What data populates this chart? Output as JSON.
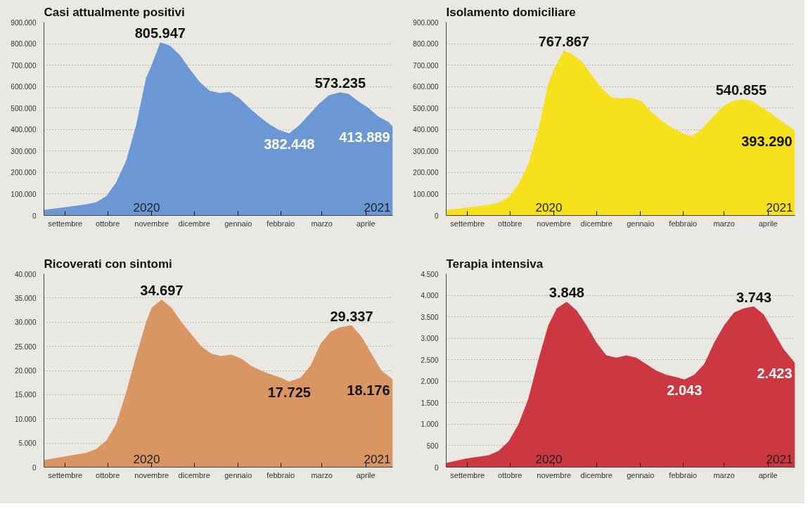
{
  "chart_data": [
    {
      "type": "area",
      "title": "Casi attualmente positivi",
      "color": "#6b98d4",
      "grid": "y",
      "tick_labels": true,
      "x": [
        "2020-09-01",
        "2020-09-15",
        "2020-10-01",
        "2020-10-08",
        "2020-10-15",
        "2020-10-22",
        "2020-10-29",
        "2020-11-05",
        "2020-11-12",
        "2020-11-16",
        "2020-11-22",
        "2020-11-29",
        "2020-12-06",
        "2020-12-13",
        "2020-12-20",
        "2020-12-27",
        "2021-01-03",
        "2021-01-10",
        "2021-01-17",
        "2021-01-24",
        "2021-01-31",
        "2021-02-07",
        "2021-02-14",
        "2021-02-21",
        "2021-02-28",
        "2021-03-07",
        "2021-03-14",
        "2021-03-21",
        "2021-03-29",
        "2021-04-04",
        "2021-04-11",
        "2021-04-18",
        "2021-04-25",
        "2021-05-02",
        "2021-05-05"
      ],
      "values": [
        26000,
        38000,
        52000,
        62000,
        90000,
        155000,
        255000,
        420000,
        640000,
        700000,
        805947,
        790000,
        745000,
        680000,
        620000,
        580000,
        570000,
        575000,
        545000,
        500000,
        460000,
        425000,
        398000,
        382448,
        420000,
        470000,
        520000,
        560000,
        573235,
        565000,
        530000,
        500000,
        460000,
        435000,
        413889
      ],
      "xlim": [
        "2020-09-01",
        "2021-05-05"
      ],
      "xticks": [
        {
          "value": "2020-09-16",
          "label": "settembre"
        },
        {
          "value": "2020-10-16",
          "label": "ottobre"
        },
        {
          "value": "2020-11-16",
          "label": "novembre"
        },
        {
          "value": "2020-12-16",
          "label": "dicembre"
        },
        {
          "value": "2021-01-16",
          "label": "gennaio"
        },
        {
          "value": "2021-02-15",
          "label": "febbraio"
        },
        {
          "value": "2021-03-16",
          "label": "marzo"
        },
        {
          "value": "2021-04-16",
          "label": "aprile"
        }
      ],
      "ylim": [
        0,
        900000
      ],
      "yticks": [
        0,
        {
          "value": 100000,
          "label": "100.000"
        },
        {
          "value": 200000,
          "label": "200.000"
        },
        {
          "value": 300000,
          "label": "300.000"
        },
        {
          "value": 400000,
          "label": "400.000"
        },
        {
          "value": 500000,
          "label": "500.000"
        },
        {
          "value": 600000,
          "label": "600.000"
        },
        {
          "value": 700000,
          "label": "700.000"
        },
        {
          "value": 800000,
          "label": "800.000"
        },
        {
          "value": 900000,
          "label": "900.000"
        }
      ],
      "annotations": [
        {
          "text": "805.947",
          "x": "2020-11-22",
          "y": 805947
        },
        {
          "text": "382.448",
          "x": "2021-02-21",
          "y": 382448
        },
        {
          "text": "573.235",
          "x": "2021-03-29",
          "y": 573235
        },
        {
          "text": "413.889",
          "x": "2021-05-05",
          "y": 413889
        },
        "2020",
        "2021"
      ]
    },
    {
      "type": "area",
      "title": "Isolamento domiciliare",
      "color": "#f7e01c",
      "grid": "y",
      "x": [
        "2020-09-01",
        "2020-09-15",
        "2020-10-01",
        "2020-10-08",
        "2020-10-15",
        "2020-10-22",
        "2020-10-29",
        "2020-11-05",
        "2020-11-12",
        "2020-11-16",
        "2020-11-23",
        "2020-11-29",
        "2020-12-06",
        "2020-12-13",
        "2020-12-20",
        "2020-12-27",
        "2021-01-03",
        "2021-01-10",
        "2021-01-17",
        "2021-01-24",
        "2021-01-31",
        "2021-02-07",
        "2021-02-14",
        "2021-02-21",
        "2021-02-28",
        "2021-03-07",
        "2021-03-14",
        "2021-03-21",
        "2021-03-28",
        "2021-04-04",
        "2021-04-11",
        "2021-04-18",
        "2021-04-25",
        "2021-05-02",
        "2021-05-05"
      ],
      "values": [
        25000,
        36000,
        50000,
        60000,
        85000,
        145000,
        240000,
        400000,
        610000,
        680000,
        767867,
        750000,
        715000,
        650000,
        590000,
        548000,
        545000,
        548000,
        530000,
        480000,
        440000,
        410000,
        385000,
        368000,
        400000,
        450000,
        500000,
        530000,
        540855,
        535000,
        505000,
        475000,
        440000,
        410000,
        393290
      ],
      "xlim": [
        "2020-09-01",
        "2021-05-05"
      ],
      "xticks": [
        {
          "value": "2020-09-16",
          "label": "settembre"
        },
        {
          "value": "2020-10-16",
          "label": "ottobre"
        },
        {
          "value": "2020-11-16",
          "label": "novembre"
        },
        {
          "value": "2020-12-16",
          "label": "dicembre"
        },
        {
          "value": "2021-01-16",
          "label": "gennaio"
        },
        {
          "value": "2021-02-15",
          "label": "febbraio"
        },
        {
          "value": "2021-03-16",
          "label": "marzo"
        },
        {
          "value": "2021-04-16",
          "label": "aprile"
        }
      ],
      "ylim": [
        0,
        900000
      ],
      "yticks": [
        0,
        {
          "value": 100000,
          "label": "100.000"
        },
        {
          "value": 200000,
          "label": "200.000"
        },
        {
          "value": 300000,
          "label": "300.000"
        },
        {
          "value": 400000,
          "label": "400.000"
        },
        {
          "value": 500000,
          "label": "500.000"
        },
        {
          "value": 600000,
          "label": "600.000"
        },
        {
          "value": 700000,
          "label": "700.000"
        },
        {
          "value": 800000,
          "label": "800.000"
        },
        {
          "value": 900000,
          "label": "900.000"
        }
      ],
      "annotations": [
        {
          "text": "767.867",
          "x": "2020-11-23",
          "y": 767867
        },
        {
          "text": "540.855",
          "x": "2021-03-28",
          "y": 540855
        },
        {
          "text": "393.290",
          "x": "2021-05-05",
          "y": 393290
        },
        "2020",
        "2021"
      ]
    },
    {
      "type": "area",
      "title": "Ricoverati con sintomi",
      "color": "#d99663",
      "grid": "y",
      "x": [
        "2020-09-01",
        "2020-09-15",
        "2020-10-01",
        "2020-10-08",
        "2020-10-15",
        "2020-10-22",
        "2020-10-29",
        "2020-11-05",
        "2020-11-12",
        "2020-11-16",
        "2020-11-23",
        "2020-11-30",
        "2020-12-07",
        "2020-12-14",
        "2020-12-21",
        "2020-12-28",
        "2021-01-04",
        "2021-01-11",
        "2021-01-18",
        "2021-01-25",
        "2021-02-01",
        "2021-02-08",
        "2021-02-15",
        "2021-02-21",
        "2021-03-01",
        "2021-03-08",
        "2021-03-15",
        "2021-03-22",
        "2021-03-29",
        "2021-04-06",
        "2021-04-13",
        "2021-04-20",
        "2021-04-27",
        "2021-05-05"
      ],
      "values": [
        1500,
        2200,
        3000,
        3800,
        5500,
        9000,
        15500,
        23000,
        30000,
        33000,
        34697,
        33000,
        30000,
        27500,
        25000,
        23500,
        23000,
        23300,
        22500,
        21000,
        20000,
        19200,
        18500,
        17725,
        18500,
        21000,
        25500,
        28000,
        29000,
        29337,
        27000,
        23500,
        20000,
        18176
      ],
      "xlim": [
        "2020-09-01",
        "2021-05-05"
      ],
      "xticks": [
        {
          "value": "2020-09-16",
          "label": "settembre"
        },
        {
          "value": "2020-10-16",
          "label": "ottobre"
        },
        {
          "value": "2020-11-16",
          "label": "novembre"
        },
        {
          "value": "2020-12-16",
          "label": "dicembre"
        },
        {
          "value": "2021-01-16",
          "label": "gennaio"
        },
        {
          "value": "2021-02-15",
          "label": "febbraio"
        },
        {
          "value": "2021-03-16",
          "label": "marzo"
        },
        {
          "value": "2021-04-16",
          "label": "aprile"
        }
      ],
      "ylim": [
        0,
        40000
      ],
      "yticks": [
        0,
        {
          "value": 5000,
          "label": "5.000"
        },
        {
          "value": 10000,
          "label": "10.000"
        },
        {
          "value": 15000,
          "label": "15.000"
        },
        {
          "value": 20000,
          "label": "20.000"
        },
        {
          "value": 25000,
          "label": "25.000"
        },
        {
          "value": 30000,
          "label": "30.000"
        },
        {
          "value": 35000,
          "label": "35.000"
        },
        {
          "value": 40000,
          "label": "40.000"
        }
      ],
      "annotations": [
        {
          "text": "34.697",
          "x": "2020-11-23",
          "y": 34697
        },
        {
          "text": "17.725",
          "x": "2021-02-21",
          "y": 17725
        },
        {
          "text": "29.337",
          "x": "2021-04-06",
          "y": 29337
        },
        {
          "text": "18.176",
          "x": "2021-05-05",
          "y": 18176
        },
        "2020",
        "2021"
      ]
    },
    {
      "type": "area",
      "title": "Terapia intensiva",
      "color": "#cc3841",
      "grid": "y",
      "x": [
        "2020-09-01",
        "2020-09-15",
        "2020-10-01",
        "2020-10-08",
        "2020-10-15",
        "2020-10-22",
        "2020-10-29",
        "2020-11-05",
        "2020-11-12",
        "2020-11-18",
        "2020-11-25",
        "2020-12-02",
        "2020-12-09",
        "2020-12-16",
        "2020-12-23",
        "2020-12-30",
        "2021-01-06",
        "2021-01-13",
        "2021-01-20",
        "2021-01-27",
        "2021-02-03",
        "2021-02-10",
        "2021-02-16",
        "2021-02-23",
        "2021-03-02",
        "2021-03-09",
        "2021-03-16",
        "2021-03-23",
        "2021-03-30",
        "2021-04-06",
        "2021-04-13",
        "2021-04-20",
        "2021-04-27",
        "2021-05-05"
      ],
      "values": [
        100,
        200,
        280,
        380,
        600,
        1000,
        1600,
        2500,
        3300,
        3700,
        3848,
        3650,
        3300,
        2900,
        2600,
        2550,
        2600,
        2550,
        2400,
        2250,
        2150,
        2100,
        2043,
        2150,
        2400,
        2900,
        3300,
        3600,
        3700,
        3743,
        3550,
        3150,
        2750,
        2423
      ],
      "xlim": [
        "2020-09-01",
        "2021-05-05"
      ],
      "xticks": [
        {
          "value": "2020-09-16",
          "label": "settembre"
        },
        {
          "value": "2020-10-16",
          "label": "ottobre"
        },
        {
          "value": "2020-11-16",
          "label": "novembre"
        },
        {
          "value": "2020-12-16",
          "label": "dicembre"
        },
        {
          "value": "2021-01-16",
          "label": "gennaio"
        },
        {
          "value": "2021-02-15",
          "label": "febbraio"
        },
        {
          "value": "2021-03-16",
          "label": "marzo"
        },
        {
          "value": "2021-04-16",
          "label": "aprile"
        }
      ],
      "ylim": [
        0,
        4500
      ],
      "yticks": [
        0,
        500,
        {
          "value": 1000,
          "label": "1.000"
        },
        {
          "value": 1500,
          "label": "1.500"
        },
        {
          "value": 2000,
          "label": "2.000"
        },
        {
          "value": 2500,
          "label": "2.500"
        },
        {
          "value": 3000,
          "label": "3.000"
        },
        {
          "value": 3500,
          "label": "3.500"
        },
        {
          "value": 4000,
          "label": "4.000"
        },
        {
          "value": 4500,
          "label": "4.500"
        }
      ],
      "annotations": [
        {
          "text": "3.848",
          "x": "2020-11-25",
          "y": 3848
        },
        {
          "text": "2.043",
          "x": "2021-02-16",
          "y": 2043
        },
        {
          "text": "3.743",
          "x": "2021-04-06",
          "y": 3743
        },
        {
          "text": "2.423",
          "x": "2021-05-05",
          "y": 2423
        },
        "2020",
        "2021"
      ]
    }
  ]
}
